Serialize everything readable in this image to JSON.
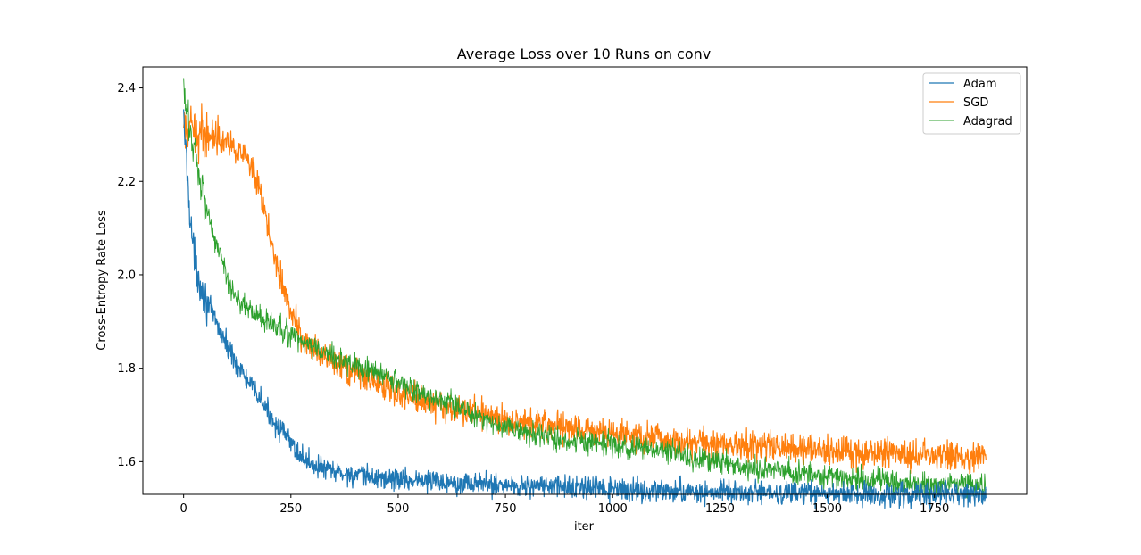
{
  "chart_data": {
    "type": "line",
    "title": "Average Loss over 10 Runs on conv",
    "xlabel": "iter",
    "ylabel": "Cross-Entropy Rate Loss",
    "xlim": [
      -95,
      1965
    ],
    "ylim": [
      1.53,
      2.445
    ],
    "xticks": [
      0,
      250,
      500,
      750,
      1000,
      1250,
      1500,
      1750
    ],
    "yticks": [
      1.6,
      1.8,
      2.0,
      2.2,
      2.4
    ],
    "xtick_labels": [
      "0",
      "250",
      "500",
      "750",
      "1000",
      "1250",
      "1500",
      "1750"
    ],
    "ytick_labels": [
      "1.6",
      "1.8",
      "2.0",
      "2.2",
      "2.4"
    ],
    "grid": false,
    "legend_position": "top-right",
    "x_max": 1870,
    "series": [
      {
        "name": "Adam",
        "color": "#1f77b4",
        "noise": 0.012,
        "points": [
          [
            0,
            2.33
          ],
          [
            5,
            2.27
          ],
          [
            10,
            2.2
          ],
          [
            15,
            2.13
          ],
          [
            20,
            2.08
          ],
          [
            25,
            2.04
          ],
          [
            30,
            2.01
          ],
          [
            40,
            1.98
          ],
          [
            50,
            1.95
          ],
          [
            60,
            1.93
          ],
          [
            75,
            1.9
          ],
          [
            90,
            1.87
          ],
          [
            100,
            1.85
          ],
          [
            125,
            1.81
          ],
          [
            150,
            1.77
          ],
          [
            175,
            1.74
          ],
          [
            200,
            1.7
          ],
          [
            225,
            1.67
          ],
          [
            250,
            1.64
          ],
          [
            275,
            1.61
          ],
          [
            300,
            1.595
          ],
          [
            325,
            1.585
          ],
          [
            350,
            1.578
          ],
          [
            400,
            1.57
          ],
          [
            450,
            1.565
          ],
          [
            500,
            1.562
          ],
          [
            600,
            1.558
          ],
          [
            700,
            1.552
          ],
          [
            800,
            1.548
          ],
          [
            900,
            1.545
          ],
          [
            1000,
            1.54
          ],
          [
            1100,
            1.537
          ],
          [
            1200,
            1.535
          ],
          [
            1300,
            1.533
          ],
          [
            1400,
            1.532
          ],
          [
            1500,
            1.531
          ],
          [
            1600,
            1.53
          ],
          [
            1700,
            1.53
          ],
          [
            1800,
            1.529
          ],
          [
            1870,
            1.529
          ]
        ]
      },
      {
        "name": "SGD",
        "color": "#ff7f0e",
        "noise": 0.016,
        "points": [
          [
            0,
            2.305
          ],
          [
            25,
            2.305
          ],
          [
            50,
            2.303
          ],
          [
            75,
            2.3
          ],
          [
            100,
            2.29
          ],
          [
            125,
            2.27
          ],
          [
            150,
            2.24
          ],
          [
            160,
            2.22
          ],
          [
            175,
            2.18
          ],
          [
            190,
            2.13
          ],
          [
            200,
            2.09
          ],
          [
            210,
            2.05
          ],
          [
            225,
            2.0
          ],
          [
            240,
            1.95
          ],
          [
            250,
            1.92
          ],
          [
            265,
            1.89
          ],
          [
            280,
            1.86
          ],
          [
            300,
            1.84
          ],
          [
            325,
            1.82
          ],
          [
            350,
            1.81
          ],
          [
            400,
            1.79
          ],
          [
            450,
            1.77
          ],
          [
            500,
            1.75
          ],
          [
            550,
            1.735
          ],
          [
            600,
            1.72
          ],
          [
            650,
            1.71
          ],
          [
            700,
            1.7
          ],
          [
            750,
            1.69
          ],
          [
            800,
            1.685
          ],
          [
            850,
            1.68
          ],
          [
            900,
            1.675
          ],
          [
            950,
            1.665
          ],
          [
            1000,
            1.66
          ],
          [
            1100,
            1.65
          ],
          [
            1200,
            1.64
          ],
          [
            1300,
            1.635
          ],
          [
            1400,
            1.63
          ],
          [
            1500,
            1.625
          ],
          [
            1600,
            1.62
          ],
          [
            1700,
            1.615
          ],
          [
            1800,
            1.613
          ],
          [
            1870,
            1.612
          ]
        ]
      },
      {
        "name": "Adagrad",
        "color": "#2ca02c",
        "noise": 0.013,
        "points": [
          [
            0,
            2.39
          ],
          [
            5,
            2.36
          ],
          [
            10,
            2.33
          ],
          [
            20,
            2.29
          ],
          [
            30,
            2.25
          ],
          [
            40,
            2.2
          ],
          [
            50,
            2.16
          ],
          [
            60,
            2.12
          ],
          [
            75,
            2.07
          ],
          [
            90,
            2.03
          ],
          [
            100,
            1.99
          ],
          [
            125,
            1.95
          ],
          [
            150,
            1.93
          ],
          [
            175,
            1.91
          ],
          [
            200,
            1.895
          ],
          [
            250,
            1.87
          ],
          [
            300,
            1.845
          ],
          [
            350,
            1.825
          ],
          [
            400,
            1.805
          ],
          [
            450,
            1.79
          ],
          [
            500,
            1.77
          ],
          [
            550,
            1.745
          ],
          [
            600,
            1.73
          ],
          [
            650,
            1.715
          ],
          [
            700,
            1.69
          ],
          [
            750,
            1.675
          ],
          [
            800,
            1.66
          ],
          [
            900,
            1.645
          ],
          [
            1000,
            1.635
          ],
          [
            1100,
            1.625
          ],
          [
            1200,
            1.605
          ],
          [
            1300,
            1.59
          ],
          [
            1400,
            1.58
          ],
          [
            1500,
            1.567
          ],
          [
            1600,
            1.56
          ],
          [
            1700,
            1.553
          ],
          [
            1800,
            1.55
          ],
          [
            1870,
            1.548
          ]
        ]
      }
    ]
  }
}
